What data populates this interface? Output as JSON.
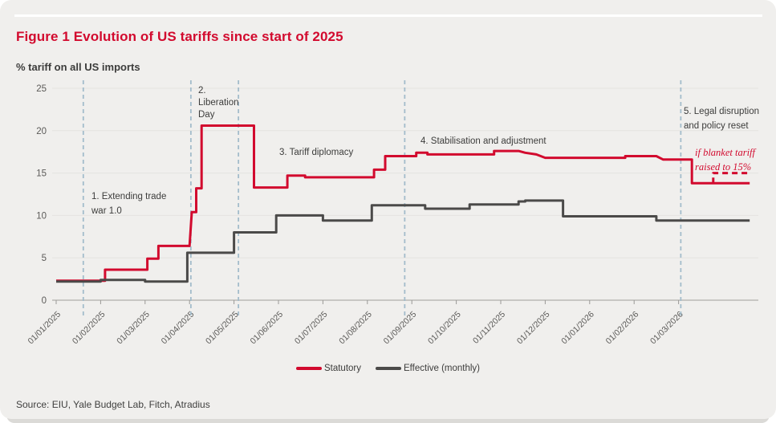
{
  "header": {
    "title": "Figure 1 Evolution of US tariffs since start of 2025",
    "subtitle": "% tariff on all US imports"
  },
  "source_line": "Source: EIU, Yale Budget Lab, Fitch, Atradius",
  "legend": [
    {
      "label": "Statutory",
      "color": "#d20a2e"
    },
    {
      "label": "Effective (monthly)",
      "color": "#4b4a49"
    }
  ],
  "colors": {
    "accent_red": "#d20a2e",
    "dark_line": "#4b4a49",
    "phase_dashed": "#a3bccb",
    "grid": "#e4e3e0",
    "axis": "#b0afac",
    "tick": "#9a9996",
    "card_bg": "#f0efed",
    "text_dark": "#3c3c3b"
  },
  "chart_data": {
    "type": "line",
    "title": "Figure 1 Evolution of US tariffs since start of 2025",
    "ylabel": "% tariff on all US imports",
    "xlabel": "",
    "ylim": [
      0,
      25
    ],
    "y_ticks": [
      0,
      5,
      10,
      15,
      20,
      25
    ],
    "grid": "horizontal only",
    "legend_position": "bottom center",
    "x_unit": "months since 01/01/2025",
    "xlim": [
      0,
      15.7
    ],
    "x_labels": [
      "01/01/2025",
      "01/02/2025",
      "01/03/2025",
      "01/04/2025",
      "01/05/2025",
      "01/06/2025",
      "01/07/2025",
      "01/08/2025",
      "01/09/2025",
      "01/10/2025",
      "01/11/2025",
      "01/12/2025",
      "01/01/2026",
      "01/02/2026",
      "01/03/2026"
    ],
    "series": [
      {
        "name": "Statutory",
        "color": "#d20a2e",
        "style": "solid",
        "points": [
          [
            0,
            2.3
          ],
          [
            1.1,
            2.3
          ],
          [
            1.1,
            3.6
          ],
          [
            2.05,
            3.6
          ],
          [
            2.05,
            4.9
          ],
          [
            2.3,
            4.9
          ],
          [
            2.3,
            6.4
          ],
          [
            3.0,
            6.4
          ],
          [
            3.05,
            10.4
          ],
          [
            3.15,
            10.4
          ],
          [
            3.15,
            13.2
          ],
          [
            3.27,
            13.2
          ],
          [
            3.27,
            20.6
          ],
          [
            4.45,
            20.6
          ],
          [
            4.45,
            13.3
          ],
          [
            5.2,
            13.3
          ],
          [
            5.2,
            14.7
          ],
          [
            5.6,
            14.7
          ],
          [
            5.6,
            14.5
          ],
          [
            7.15,
            14.5
          ],
          [
            7.15,
            15.4
          ],
          [
            7.4,
            15.4
          ],
          [
            7.4,
            17.0
          ],
          [
            8.1,
            17.0
          ],
          [
            8.1,
            17.4
          ],
          [
            8.35,
            17.4
          ],
          [
            8.35,
            17.2
          ],
          [
            9.85,
            17.2
          ],
          [
            9.85,
            17.6
          ],
          [
            10.4,
            17.6
          ],
          [
            10.55,
            17.4
          ],
          [
            10.8,
            17.2
          ],
          [
            11.0,
            16.8
          ],
          [
            12.8,
            16.8
          ],
          [
            12.8,
            17.0
          ],
          [
            13.5,
            17.0
          ],
          [
            13.65,
            16.6
          ],
          [
            14.3,
            16.6
          ],
          [
            14.3,
            13.8
          ],
          [
            15.6,
            13.8
          ]
        ]
      },
      {
        "name": "Effective (monthly)",
        "color": "#4b4a49",
        "style": "solid",
        "points": [
          [
            0,
            2.2
          ],
          [
            1.0,
            2.2
          ],
          [
            1.0,
            2.4
          ],
          [
            2.0,
            2.4
          ],
          [
            2.0,
            2.2
          ],
          [
            2.95,
            2.2
          ],
          [
            2.95,
            5.6
          ],
          [
            4.0,
            5.6
          ],
          [
            4.0,
            8.0
          ],
          [
            4.95,
            8.0
          ],
          [
            4.95,
            10.0
          ],
          [
            6.0,
            10.0
          ],
          [
            6.0,
            9.4
          ],
          [
            7.1,
            9.4
          ],
          [
            7.1,
            11.2
          ],
          [
            8.3,
            11.2
          ],
          [
            8.3,
            10.8
          ],
          [
            9.3,
            10.8
          ],
          [
            9.3,
            11.3
          ],
          [
            10.4,
            11.3
          ],
          [
            10.4,
            11.65
          ],
          [
            10.55,
            11.65
          ],
          [
            10.55,
            11.75
          ],
          [
            11.4,
            11.75
          ],
          [
            11.4,
            9.9
          ],
          [
            13.5,
            9.9
          ],
          [
            13.5,
            9.4
          ],
          [
            15.6,
            9.4
          ]
        ]
      },
      {
        "name": "Statutory scenario: if blanket tariff raised to 15%",
        "color": "#d20a2e",
        "style": "dashed",
        "points": [
          [
            14.78,
            13.8
          ],
          [
            14.78,
            15.0
          ],
          [
            15.6,
            15.0
          ]
        ]
      }
    ],
    "phase_lines": [
      {
        "x": 0.61,
        "note": "start of phase 1"
      },
      {
        "x": 3.03,
        "note": "Liberation Day"
      },
      {
        "x": 4.1,
        "note": "start of phase 3"
      },
      {
        "x": 7.84,
        "note": "start of phase 4"
      },
      {
        "x": 14.05,
        "note": "start of phase 5"
      }
    ],
    "annotations": [
      {
        "lines": [
          "1. Extending trade",
          "war 1.0"
        ]
      },
      {
        "lines": [
          "2.",
          "Liberation",
          "Day"
        ]
      },
      {
        "lines": [
          "3. Tariff diplomacy"
        ]
      },
      {
        "lines": [
          "4. Stabilisation and adjustment"
        ]
      },
      {
        "lines": [
          "5. Legal disruption",
          "and policy reset"
        ]
      },
      {
        "lines": [
          "if blanket tariff",
          "raised to 15%"
        ]
      }
    ]
  }
}
